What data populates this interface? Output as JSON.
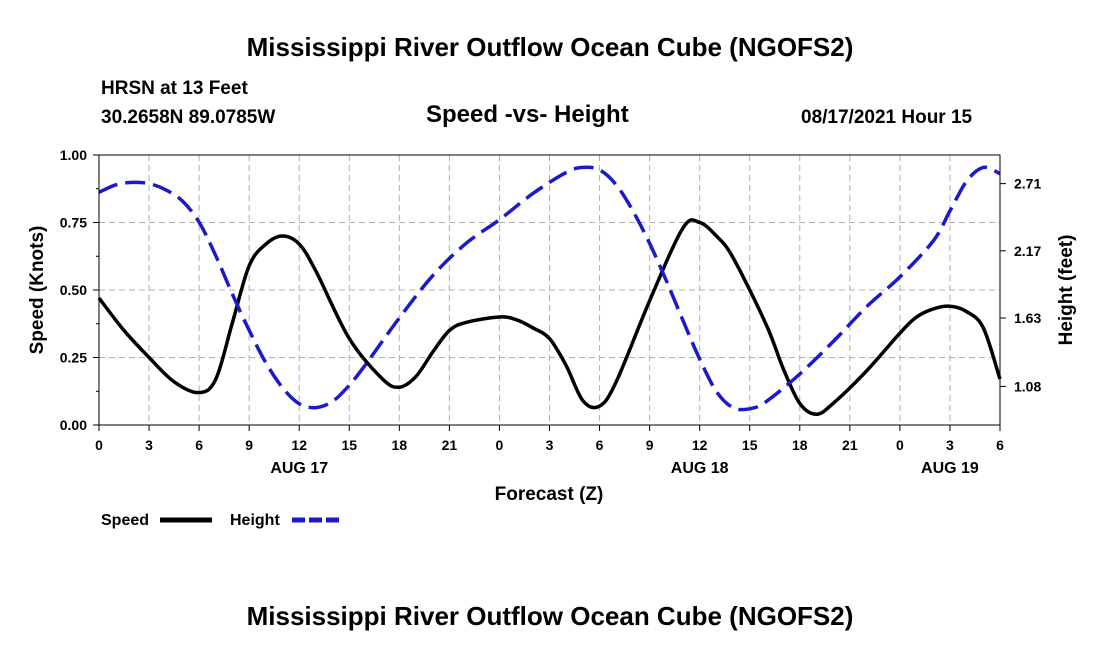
{
  "title_top": "Mississippi River Outflow Ocean Cube (NGOFS2)",
  "title_bottom": "Mississippi River Outflow Ocean Cube (NGOFS2)",
  "station": {
    "name": "HRSN at 13 Feet",
    "coords": "30.2658N  89.0785W"
  },
  "subtitle": "Speed -vs- Height",
  "timestamp": "08/17/2021 Hour 15",
  "legend": {
    "speed_label": "Speed",
    "height_label": "Height"
  },
  "chart_data": {
    "type": "line",
    "title": "Speed -vs- Height",
    "xlabel": "Forecast (Z)",
    "ylabel_left": "Speed (Knots)",
    "ylabel_right": "Height (feet)",
    "xlim": [
      0,
      54
    ],
    "ylim_left": [
      0,
      1
    ],
    "ylim_right": [
      0.77,
      2.94
    ],
    "grid": true,
    "x_ticks": [
      0,
      3,
      6,
      9,
      12,
      15,
      18,
      21,
      24,
      27,
      30,
      33,
      36,
      39,
      42,
      45,
      48,
      51,
      54
    ],
    "x_tick_labels": [
      "0",
      "3",
      "6",
      "9",
      "12",
      "15",
      "18",
      "21",
      "0",
      "3",
      "6",
      "9",
      "12",
      "15",
      "18",
      "21",
      "0",
      "3",
      "6"
    ],
    "date_labels": [
      {
        "x": 12,
        "label": "AUG 17"
      },
      {
        "x": 36,
        "label": "AUG 18"
      },
      {
        "x": 51,
        "label": "AUG 19"
      }
    ],
    "left_ticks": [
      0,
      0.25,
      0.5,
      0.75,
      1.0
    ],
    "left_tick_labels": [
      "0.00",
      "0.25",
      "0.50",
      "0.75",
      "1.00"
    ],
    "right_ticks": [
      1.08,
      1.63,
      2.17,
      2.71
    ],
    "right_tick_labels": [
      "1.08",
      "1.63",
      "2.17",
      "2.71"
    ],
    "series": [
      {
        "name": "Speed",
        "axis": "left",
        "color": "#000000",
        "style": "solid",
        "x": [
          0,
          1.5,
          3,
          4.5,
          6,
          7,
          8,
          9,
          10,
          11,
          12,
          13,
          15,
          17,
          18,
          19,
          20,
          21,
          22,
          24,
          25,
          26,
          27,
          28,
          29,
          30,
          31,
          33,
          35,
          36,
          37,
          38,
          40,
          41,
          42,
          43,
          44,
          46,
          48,
          49,
          50,
          51,
          52,
          53,
          54
        ],
        "y": [
          0.47,
          0.35,
          0.25,
          0.16,
          0.12,
          0.17,
          0.38,
          0.59,
          0.67,
          0.7,
          0.67,
          0.57,
          0.32,
          0.17,
          0.14,
          0.18,
          0.27,
          0.35,
          0.38,
          0.4,
          0.39,
          0.36,
          0.32,
          0.22,
          0.09,
          0.07,
          0.16,
          0.46,
          0.73,
          0.75,
          0.7,
          0.62,
          0.37,
          0.21,
          0.08,
          0.04,
          0.08,
          0.2,
          0.34,
          0.4,
          0.43,
          0.44,
          0.42,
          0.36,
          0.17
        ]
      },
      {
        "name": "Height",
        "axis": "right",
        "color": "#1a1acc",
        "style": "dashed",
        "x": [
          0,
          1,
          2,
          3,
          4,
          5,
          6,
          7,
          8,
          9,
          10,
          11,
          12,
          13,
          14,
          15,
          16,
          18,
          20,
          22,
          24,
          26,
          28,
          29,
          30,
          31,
          32,
          33,
          34,
          35,
          36,
          37,
          38,
          39,
          40,
          42,
          44,
          46,
          48,
          50,
          51,
          52,
          53,
          54
        ],
        "y": [
          2.64,
          2.7,
          2.72,
          2.71,
          2.66,
          2.57,
          2.4,
          2.13,
          1.82,
          1.53,
          1.27,
          1.07,
          0.94,
          0.91,
          0.96,
          1.09,
          1.26,
          1.63,
          1.97,
          2.23,
          2.42,
          2.63,
          2.8,
          2.84,
          2.82,
          2.7,
          2.49,
          2.23,
          1.93,
          1.61,
          1.3,
          1.04,
          0.91,
          0.9,
          0.96,
          1.18,
          1.44,
          1.72,
          1.96,
          2.25,
          2.49,
          2.73,
          2.84,
          2.79
        ]
      }
    ]
  }
}
